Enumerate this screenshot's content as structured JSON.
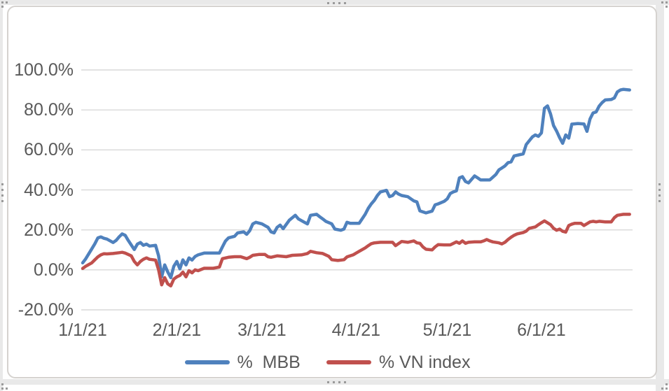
{
  "chart_data": {
    "type": "line",
    "title": "",
    "grid": "horizontal",
    "legend_position": "bottom",
    "y_axis": {
      "min": -20,
      "max": 100,
      "step": 20,
      "unit": "percent",
      "tick_labels": [
        "100.0%",
        "80.0%",
        "60.0%",
        "40.0%",
        "20.0%",
        "0.0%",
        "-20.0%"
      ]
    },
    "x_axis": {
      "type": "date",
      "domain_days": [
        0,
        181
      ],
      "tick_day_offsets": [
        0,
        31,
        59,
        90,
        120,
        151
      ],
      "tick_labels": [
        "1/1/21",
        "2/1/21",
        "3/1/21",
        "4/1/21",
        "5/1/21",
        "6/1/21"
      ]
    },
    "series": [
      {
        "name": "%  MBB",
        "color": "#4F81BD",
        "points": [
          [
            0,
            3.5
          ],
          [
            1,
            5.5
          ],
          [
            3,
            10.5
          ],
          [
            4,
            13
          ],
          [
            5,
            16
          ],
          [
            6,
            16.5
          ],
          [
            7,
            15.8
          ],
          [
            8,
            15.4
          ],
          [
            10,
            13.7
          ],
          [
            11,
            14.7
          ],
          [
            12,
            16.5
          ],
          [
            13,
            18
          ],
          [
            14,
            17.3
          ],
          [
            15,
            14.7
          ],
          [
            17,
            10.2
          ],
          [
            18,
            12.9
          ],
          [
            19,
            13.7
          ],
          [
            20,
            12.3
          ],
          [
            21,
            12.9
          ],
          [
            22,
            11.9
          ],
          [
            24,
            12.3
          ],
          [
            25,
            7
          ],
          [
            26,
            -3.5
          ],
          [
            27,
            2.5
          ],
          [
            28,
            -1
          ],
          [
            29,
            -3.9
          ],
          [
            30,
            1.8
          ],
          [
            31,
            4.2
          ],
          [
            32,
            0.5
          ],
          [
            33,
            5
          ],
          [
            34,
            2.5
          ],
          [
            35,
            6
          ],
          [
            36,
            4.9
          ],
          [
            37,
            6.7
          ],
          [
            38,
            7.5
          ],
          [
            40,
            8.4
          ],
          [
            43,
            8.4
          ],
          [
            45,
            8.4
          ],
          [
            46,
            11.5
          ],
          [
            47,
            14.4
          ],
          [
            48,
            16
          ],
          [
            50,
            16.8
          ],
          [
            51,
            18.5
          ],
          [
            53,
            19
          ],
          [
            54,
            17.8
          ],
          [
            55,
            19.6
          ],
          [
            56,
            23
          ],
          [
            57,
            23.8
          ],
          [
            59,
            23
          ],
          [
            61,
            21.3
          ],
          [
            62,
            19
          ],
          [
            63,
            18.5
          ],
          [
            64,
            21.3
          ],
          [
            65,
            22.4
          ],
          [
            66,
            20.6
          ],
          [
            68,
            24.8
          ],
          [
            70,
            27.3
          ],
          [
            71,
            25.5
          ],
          [
            73,
            23.8
          ],
          [
            74,
            23
          ],
          [
            75,
            27.3
          ],
          [
            77,
            27.8
          ],
          [
            78,
            26.6
          ],
          [
            79,
            25.5
          ],
          [
            80,
            24.3
          ],
          [
            82,
            23
          ],
          [
            83,
            20.4
          ],
          [
            85,
            19.8
          ],
          [
            86,
            20.4
          ],
          [
            87,
            23.8
          ],
          [
            88,
            23.3
          ],
          [
            91,
            23.3
          ],
          [
            93,
            27.8
          ],
          [
            94,
            30.8
          ],
          [
            95,
            33
          ],
          [
            96,
            34.8
          ],
          [
            97,
            37.2
          ],
          [
            98,
            39
          ],
          [
            100,
            39.8
          ],
          [
            101,
            36.6
          ],
          [
            102,
            37.2
          ],
          [
            103,
            39
          ],
          [
            104,
            37.9
          ],
          [
            105,
            37.2
          ],
          [
            107,
            36.6
          ],
          [
            109,
            34.5
          ],
          [
            110,
            34
          ],
          [
            111,
            29.5
          ],
          [
            113,
            28.5
          ],
          [
            115,
            29.4
          ],
          [
            116,
            32.5
          ],
          [
            117,
            33
          ],
          [
            119,
            34.3
          ],
          [
            120,
            35.5
          ],
          [
            121,
            38.2
          ],
          [
            122,
            39
          ],
          [
            123,
            39.5
          ],
          [
            124,
            46
          ],
          [
            125,
            46.6
          ],
          [
            126,
            44.2
          ],
          [
            127,
            43.5
          ],
          [
            129,
            47
          ],
          [
            130,
            46
          ],
          [
            131,
            45
          ],
          [
            134,
            45
          ],
          [
            136,
            47.7
          ],
          [
            137,
            50
          ],
          [
            138,
            51
          ],
          [
            139,
            52
          ],
          [
            140,
            53.6
          ],
          [
            141,
            54
          ],
          [
            142,
            57
          ],
          [
            145,
            58
          ],
          [
            146,
            62.7
          ],
          [
            148,
            66.5
          ],
          [
            149,
            67.5
          ],
          [
            150,
            66.8
          ],
          [
            151,
            68.5
          ],
          [
            152,
            80.8
          ],
          [
            153,
            82
          ],
          [
            154,
            78
          ],
          [
            155,
            72.2
          ],
          [
            156,
            69.4
          ],
          [
            157,
            66.1
          ],
          [
            158,
            63.3
          ],
          [
            159,
            67.5
          ],
          [
            160,
            65.9
          ],
          [
            161,
            72.9
          ],
          [
            163,
            73.2
          ],
          [
            165,
            73
          ],
          [
            166,
            69.3
          ],
          [
            167,
            75.5
          ],
          [
            168,
            78.5
          ],
          [
            169,
            79
          ],
          [
            170,
            81.9
          ],
          [
            171,
            83.7
          ],
          [
            172,
            85
          ],
          [
            174,
            85.2
          ],
          [
            175,
            86
          ],
          [
            176,
            89
          ],
          [
            177,
            90
          ],
          [
            178,
            90.3
          ],
          [
            180,
            90
          ]
        ]
      },
      {
        "name": "% VN index",
        "color": "#C0504D",
        "points": [
          [
            0,
            0.7
          ],
          [
            1,
            1.8
          ],
          [
            3,
            3.5
          ],
          [
            4,
            5
          ],
          [
            5,
            6.5
          ],
          [
            6,
            7.5
          ],
          [
            7,
            8.1
          ],
          [
            8,
            8
          ],
          [
            10,
            8.2
          ],
          [
            12,
            8.6
          ],
          [
            13,
            8.8
          ],
          [
            14,
            8.4
          ],
          [
            15,
            7.7
          ],
          [
            16,
            7
          ],
          [
            17,
            4.2
          ],
          [
            18,
            2.5
          ],
          [
            19,
            4.2
          ],
          [
            20,
            5.3
          ],
          [
            21,
            6
          ],
          [
            22,
            5.3
          ],
          [
            24,
            4.9
          ],
          [
            25,
            0
          ],
          [
            26,
            -7.5
          ],
          [
            27,
            -3.9
          ],
          [
            28,
            -7
          ],
          [
            29,
            -8
          ],
          [
            30,
            -4.6
          ],
          [
            31,
            -3.5
          ],
          [
            32,
            -2.8
          ],
          [
            33,
            -1.1
          ],
          [
            34,
            -3.5
          ],
          [
            35,
            -0.4
          ],
          [
            36,
            -1.5
          ],
          [
            37,
            0
          ],
          [
            38,
            -0.4
          ],
          [
            40,
            0.8
          ],
          [
            43,
            0.8
          ],
          [
            45,
            1.4
          ],
          [
            46,
            5.6
          ],
          [
            48,
            6.3
          ],
          [
            50,
            6.6
          ],
          [
            52,
            6.6
          ],
          [
            54,
            5.6
          ],
          [
            55,
            6.3
          ],
          [
            56,
            7.3
          ],
          [
            58,
            7.7
          ],
          [
            60,
            7.7
          ],
          [
            61,
            6.6
          ],
          [
            62,
            6.3
          ],
          [
            64,
            7
          ],
          [
            67,
            6.6
          ],
          [
            69,
            7.3
          ],
          [
            72,
            7.5
          ],
          [
            74,
            8.2
          ],
          [
            75,
            9.3
          ],
          [
            77,
            8.6
          ],
          [
            79,
            8.2
          ],
          [
            80,
            7.5
          ],
          [
            81,
            6.8
          ],
          [
            82,
            5.1
          ],
          [
            84,
            4.7
          ],
          [
            86,
            5.1
          ],
          [
            87,
            6.5
          ],
          [
            89,
            7.5
          ],
          [
            91,
            9.3
          ],
          [
            93,
            11
          ],
          [
            94,
            12.1
          ],
          [
            95,
            13.1
          ],
          [
            96,
            13.5
          ],
          [
            98,
            13.8
          ],
          [
            102,
            13.8
          ],
          [
            103,
            12.1
          ],
          [
            105,
            14.2
          ],
          [
            107,
            13.8
          ],
          [
            109,
            14.5
          ],
          [
            110,
            13.5
          ],
          [
            111,
            13.3
          ],
          [
            112,
            11.5
          ],
          [
            113,
            10.3
          ],
          [
            115,
            10
          ],
          [
            116,
            11.5
          ],
          [
            117,
            12.6
          ],
          [
            119,
            12.5
          ],
          [
            121,
            12.5
          ],
          [
            123,
            14
          ],
          [
            124,
            13.3
          ],
          [
            125,
            14.5
          ],
          [
            126,
            13.3
          ],
          [
            127,
            13.8
          ],
          [
            129,
            14
          ],
          [
            131,
            14
          ],
          [
            132,
            14.5
          ],
          [
            133,
            15.2
          ],
          [
            134,
            14.5
          ],
          [
            135,
            14
          ],
          [
            137,
            13.5
          ],
          [
            138,
            13
          ],
          [
            139,
            13.8
          ],
          [
            140,
            15.2
          ],
          [
            141,
            16.3
          ],
          [
            142,
            17.3
          ],
          [
            143,
            18
          ],
          [
            145,
            18.7
          ],
          [
            146,
            19.4
          ],
          [
            147,
            20.8
          ],
          [
            149,
            21.5
          ],
          [
            150,
            22.6
          ],
          [
            151,
            23.6
          ],
          [
            152,
            24.5
          ],
          [
            154,
            22.6
          ],
          [
            155,
            20.8
          ],
          [
            156,
            19.8
          ],
          [
            157,
            20.4
          ],
          [
            158,
            19.3
          ],
          [
            159,
            18.9
          ],
          [
            160,
            22.2
          ],
          [
            161,
            22.9
          ],
          [
            162,
            23.3
          ],
          [
            164,
            23.3
          ],
          [
            165,
            22.2
          ],
          [
            167,
            24
          ],
          [
            168,
            24.3
          ],
          [
            169,
            24
          ],
          [
            170,
            24.3
          ],
          [
            172,
            24
          ],
          [
            174,
            24
          ],
          [
            175,
            26.1
          ],
          [
            176,
            27.3
          ],
          [
            178,
            27.8
          ],
          [
            180,
            27.8
          ]
        ]
      }
    ],
    "colors": {
      "grid": "#d9d9d9",
      "axis_text": "#595959",
      "frame_border": "#d5d2cf",
      "background": "#ffffff"
    }
  }
}
